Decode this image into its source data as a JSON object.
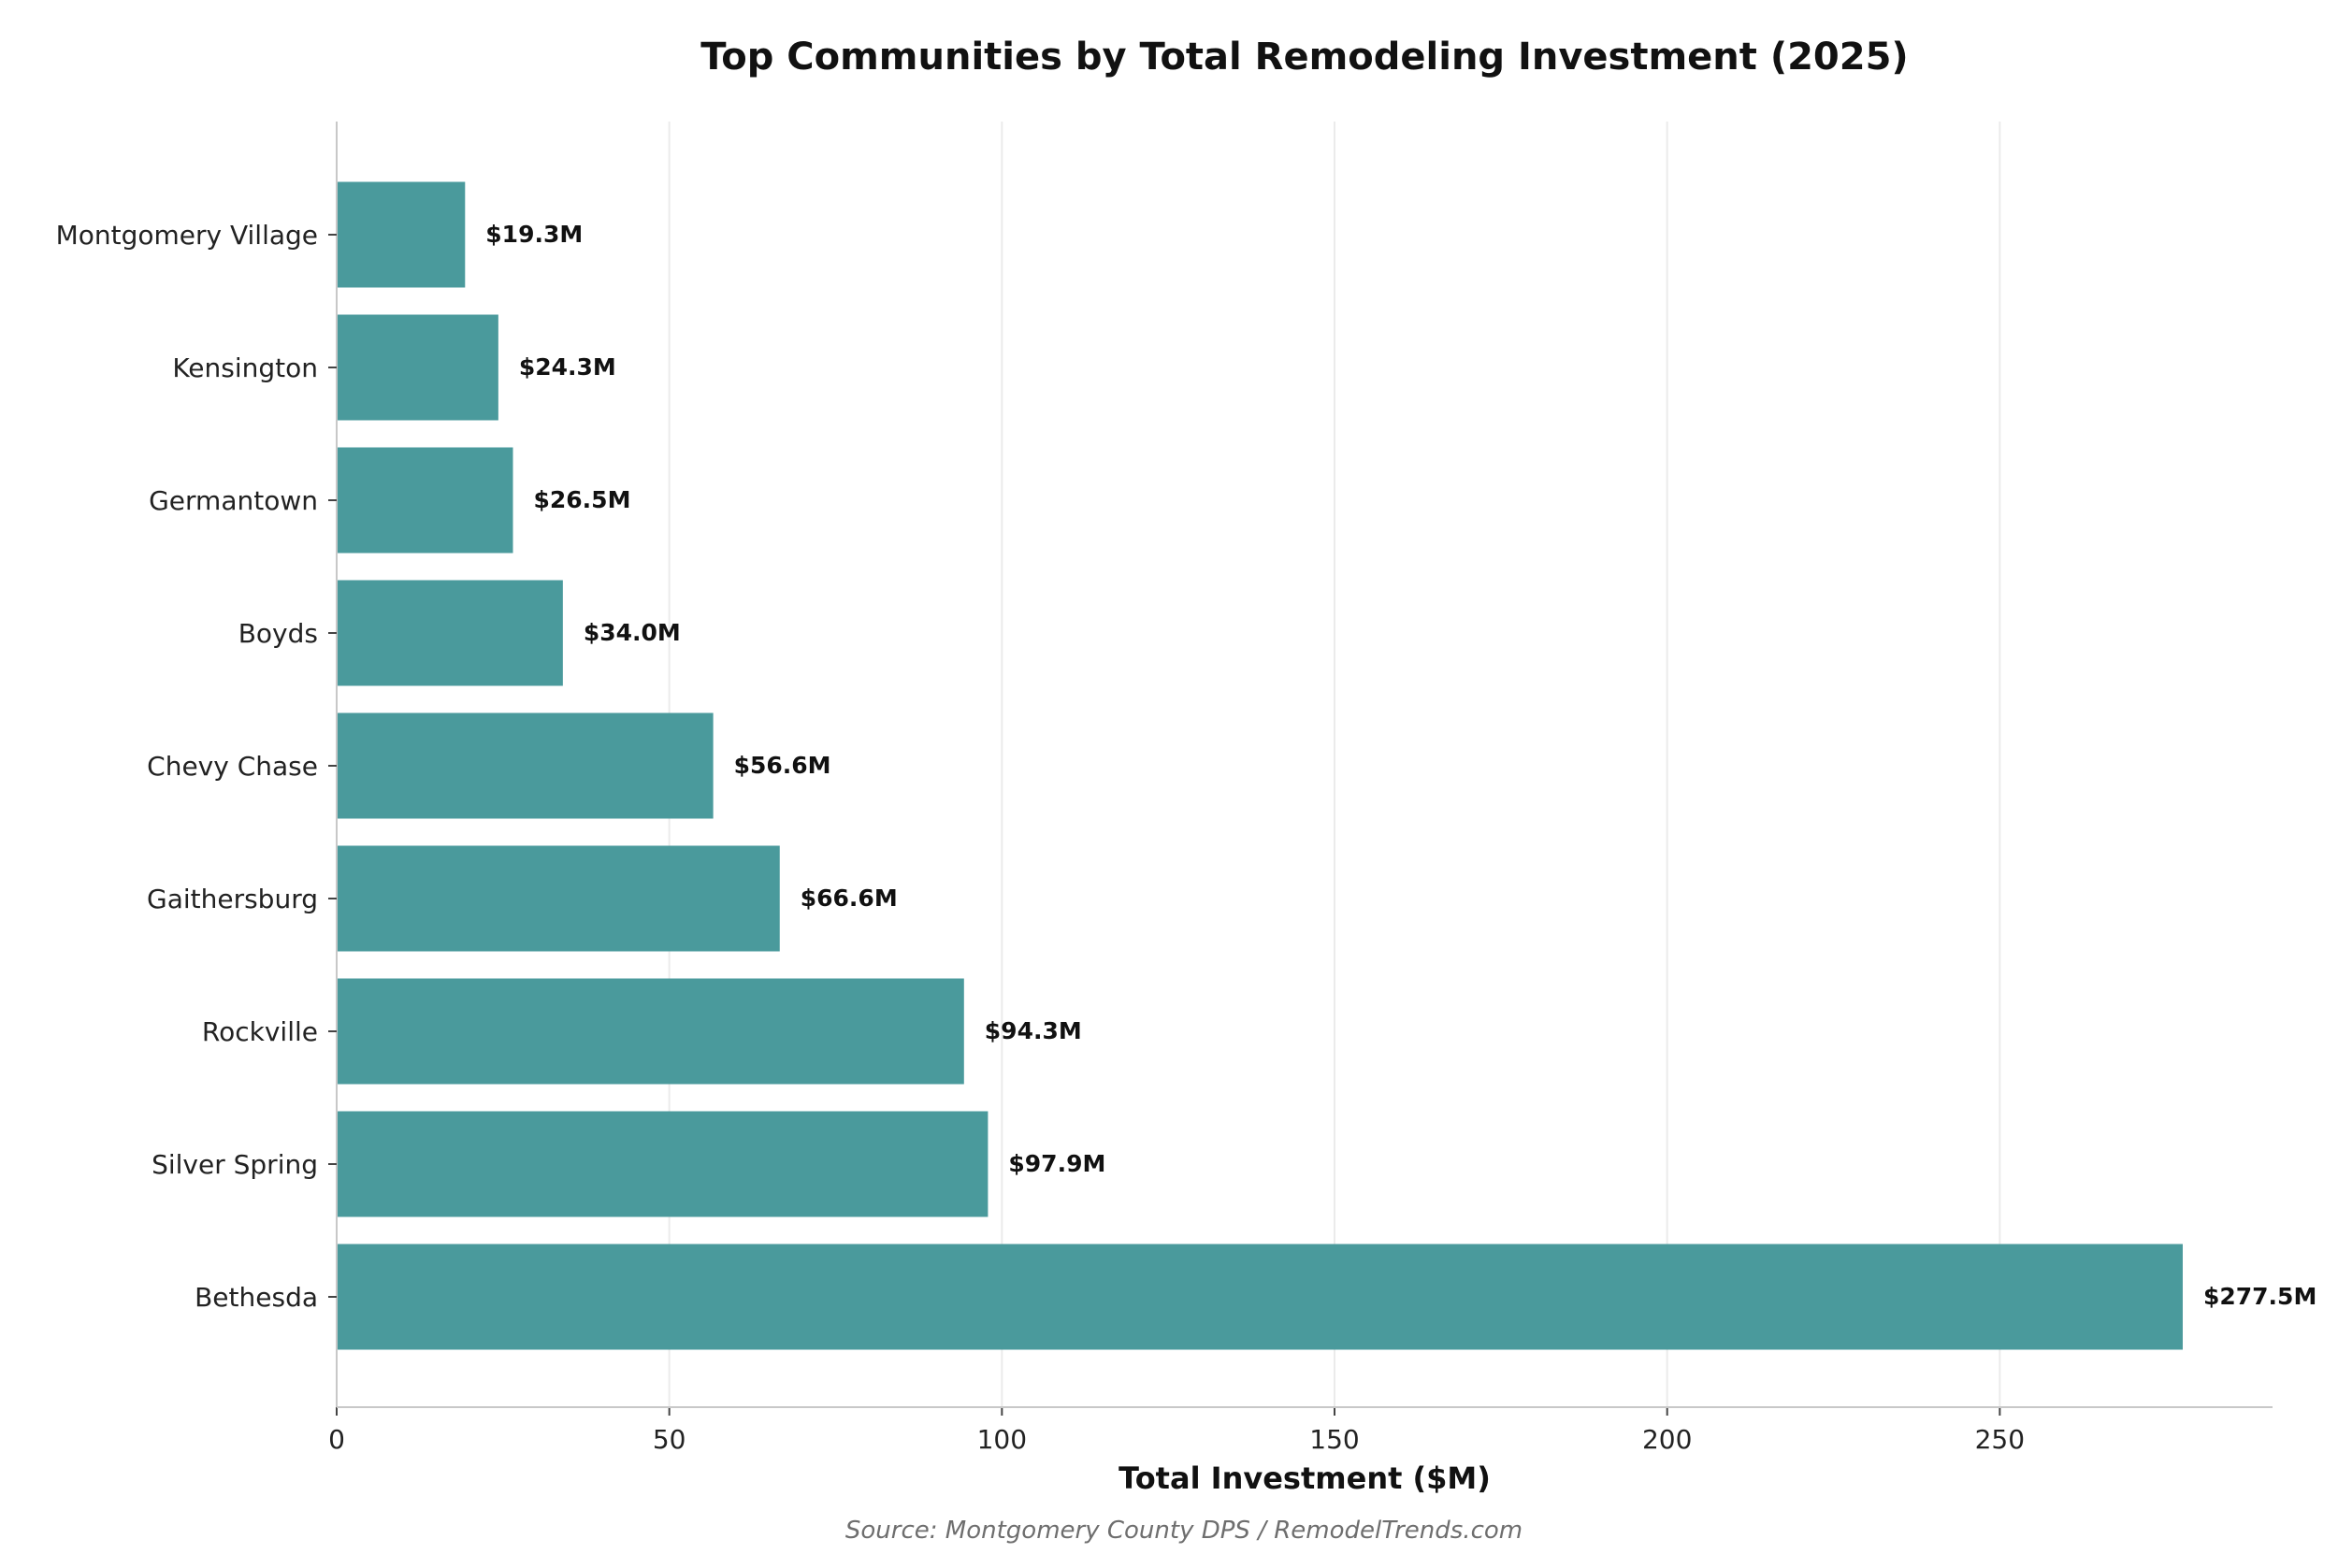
{
  "chart_data": {
    "type": "bar",
    "orientation": "horizontal",
    "title": "Top Communities by Total Remodeling Investment (2025)",
    "xlabel": "Total Investment ($M)",
    "ylabel": "",
    "xlim": [
      0,
      291
    ],
    "xticks": [
      0,
      50,
      100,
      150,
      200,
      250
    ],
    "grid": "vertical",
    "categories": [
      "Montgomery Village",
      "Kensington",
      "Germantown",
      "Boyds",
      "Chevy Chase",
      "Gaithersburg",
      "Rockville",
      "Silver Spring",
      "Bethesda"
    ],
    "values": [
      19.3,
      24.3,
      26.5,
      34.0,
      56.6,
      66.6,
      94.3,
      97.9,
      277.5
    ],
    "value_labels": [
      "$19.3M",
      "$24.3M",
      "$26.5M",
      "$34.0M",
      "$56.6M",
      "$66.6M",
      "$94.3M",
      "$97.9M",
      "$277.5M"
    ],
    "bar_color": "#4a9a9c",
    "source": "Source: Montgomery County DPS / RemodelTrends.com"
  }
}
